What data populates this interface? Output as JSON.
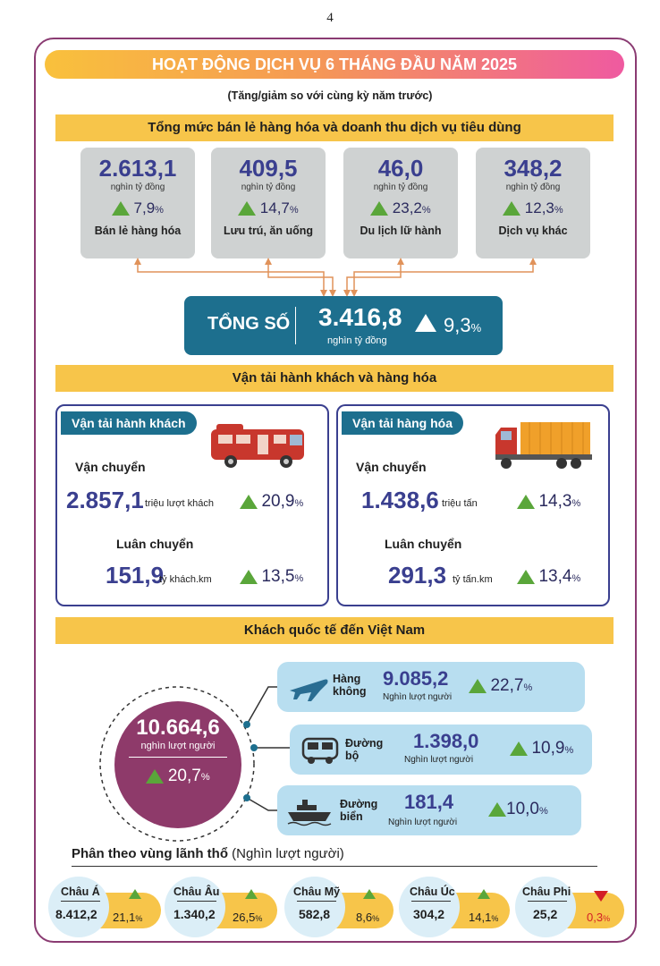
{
  "page_number": "4",
  "title": "HOẠT ĐỘNG DỊCH VỤ 6 THÁNG ĐẦU NĂM 2025",
  "subtitle": "(Tăng/giảm so với cùng kỳ năm trước)",
  "retail": {
    "heading": "Tổng mức bán lẻ hàng hóa và doanh thu dịch vụ tiêu dùng",
    "unit": "nghìn tỷ đồng",
    "items": [
      {
        "value": "2.613,1",
        "pct": "7,9",
        "label": "Bán lẻ hàng hóa"
      },
      {
        "value": "409,5",
        "pct": "14,7",
        "label": "Lưu trú, ăn uống"
      },
      {
        "value": "46,0",
        "pct": "23,2",
        "label": "Du lịch lữ hành"
      },
      {
        "value": "348,2",
        "pct": "12,3",
        "label": "Dịch vụ khác"
      }
    ],
    "total_label": "TỔNG SỐ",
    "total_value": "3.416,8",
    "total_unit": "nghìn tỷ đồng",
    "total_pct": "9,3"
  },
  "transport": {
    "heading": "Vận tải hành khách và hàng hóa",
    "passenger": {
      "tab": "Vận tải hành khách",
      "carry_label": "Vận chuyển",
      "carry_value": "2.857,1",
      "carry_unit": "triệu lượt khách",
      "carry_pct": "20,9",
      "rot_label": "Luân chuyển",
      "rot_value": "151,9",
      "rot_unit": "tỷ khách.km",
      "rot_pct": "13,5"
    },
    "cargo": {
      "tab": "Vận tải hàng hóa",
      "carry_label": "Vận chuyển",
      "carry_value": "1.438,6",
      "carry_unit": "triệu tấn",
      "carry_pct": "14,3",
      "rot_label": "Luân chuyển",
      "rot_value": "291,3",
      "rot_unit": "tỷ tấn.km",
      "rot_pct": "13,4"
    }
  },
  "intl": {
    "heading": "Khách quốc tế đến Việt Nam",
    "total_value": "10.664,6",
    "total_unit": "nghìn lượt người",
    "total_pct": "20,7",
    "modes": [
      {
        "label": "Hàng không",
        "value": "9.085,2",
        "unit": "Nghìn lượt người",
        "pct": "22,7",
        "icon": "airplane-icon"
      },
      {
        "label": "Đường bộ",
        "value": "1.398,0",
        "unit": "Nghìn lượt người",
        "pct": "10,9",
        "icon": "bus-icon"
      },
      {
        "label": "Đường biển",
        "value": "181,4",
        "unit": "Nghìn lượt người",
        "pct": "10,0",
        "icon": "ship-icon"
      }
    ]
  },
  "regions": {
    "heading_bold": "Phân theo vùng lãnh thổ",
    "heading_unit": "(Nghìn lượt người)",
    "items": [
      {
        "name": "Châu Á",
        "value": "8.412,2",
        "pct": "21,1",
        "dir": "up"
      },
      {
        "name": "Châu Âu",
        "value": "1.340,2",
        "pct": "26,5",
        "dir": "up"
      },
      {
        "name": "Châu Mỹ",
        "value": "582,8",
        "pct": "8,6",
        "dir": "up"
      },
      {
        "name": "Châu Úc",
        "value": "304,2",
        "pct": "14,1",
        "dir": "up"
      },
      {
        "name": "Châu Phi",
        "value": "25,2",
        "pct": "0,3",
        "dir": "down"
      }
    ]
  },
  "colors": {
    "accent_blue": "#1d6f8e",
    "navy": "#3a3f8f",
    "yellow": "#f7c54a",
    "green": "#5aa63a",
    "red": "#d31f26",
    "purple": "#8a3b72"
  }
}
